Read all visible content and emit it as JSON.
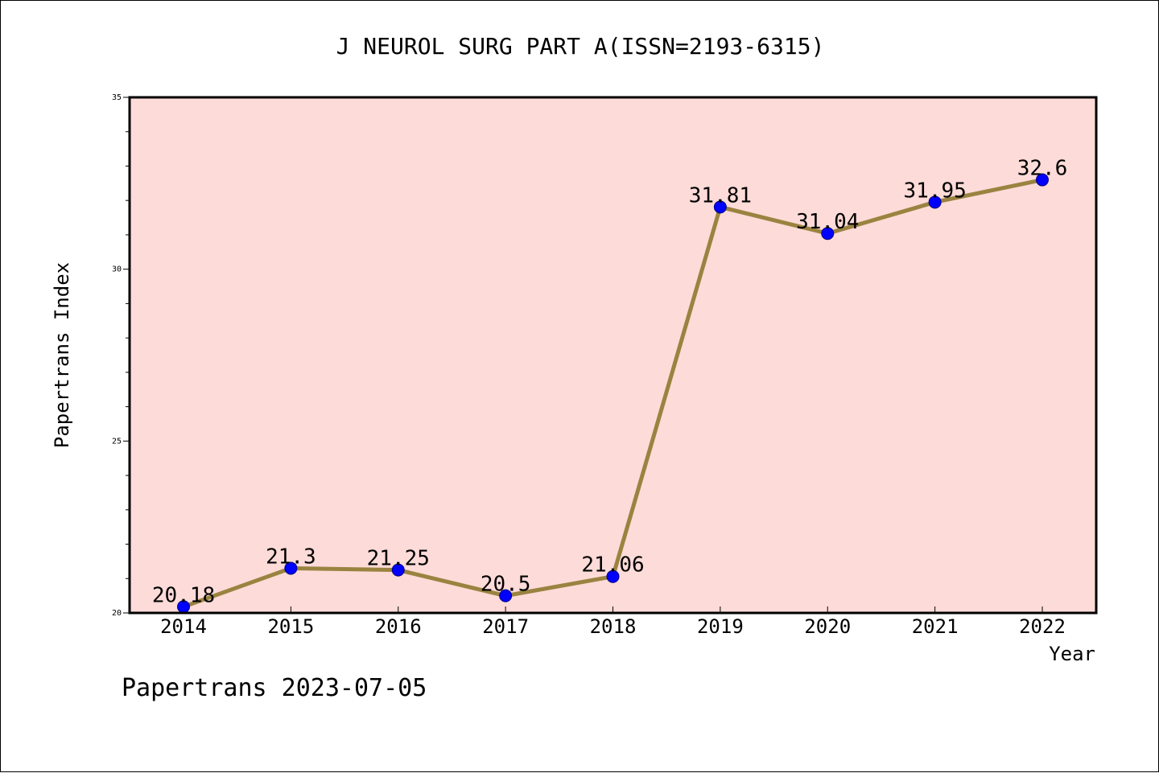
{
  "chart_data": {
    "type": "line",
    "title": "J NEUROL SURG PART A(ISSN=2193-6315)",
    "xlabel": "Year",
    "ylabel": "Papertrans Index",
    "categories": [
      "2014",
      "2015",
      "2016",
      "2017",
      "2018",
      "2019",
      "2020",
      "2021",
      "2022"
    ],
    "series": [
      {
        "values": [
          20.18,
          21.3,
          21.25,
          20.5,
          21.06,
          31.81,
          31.04,
          31.95,
          32.6
        ]
      }
    ],
    "data_labels": [
      "20.18",
      "21.3",
      "21.25",
      "20.5",
      "21.06",
      "31.81",
      "31.04",
      "31.95",
      "32.6"
    ],
    "ylim": [
      20,
      35
    ],
    "yticks": [
      20,
      25,
      30,
      35
    ],
    "grid": false,
    "colors": {
      "plot_background": "#fddbd8",
      "line": "#9a8340",
      "marker": "#0000ff",
      "marker_edge": "#000080"
    }
  },
  "footer": "Papertrans 2023-07-05"
}
